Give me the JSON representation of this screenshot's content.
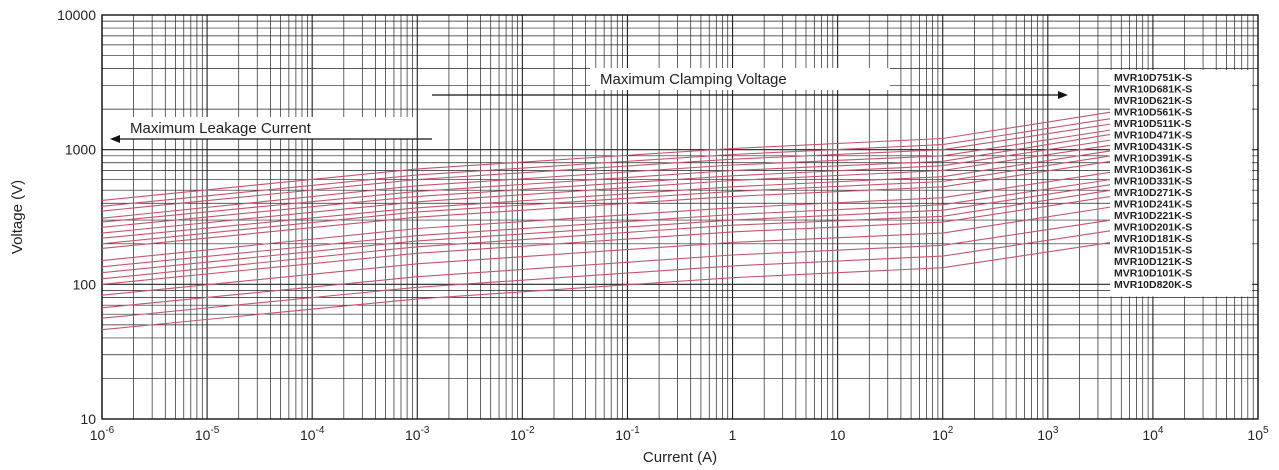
{
  "chart_data": {
    "type": "line",
    "title": "",
    "xlabel": "Current (A)",
    "ylabel": "Voltage (V)",
    "x_scale": "log",
    "y_scale": "log",
    "xlim": [
      1e-06,
      100000.0
    ],
    "ylim": [
      10,
      10000
    ],
    "grid": true,
    "x_tick_labels": [
      {
        "base": "10",
        "exp": "-6"
      },
      {
        "base": "10",
        "exp": "-5"
      },
      {
        "base": "10",
        "exp": "-4"
      },
      {
        "base": "10",
        "exp": "-3"
      },
      {
        "base": "10",
        "exp": "-2"
      },
      {
        "base": "10",
        "exp": "-1"
      },
      {
        "base": "1",
        "exp": ""
      },
      {
        "base": "10",
        "exp": ""
      },
      {
        "base": "10",
        "exp": "2"
      },
      {
        "base": "10",
        "exp": "3"
      },
      {
        "base": "10",
        "exp": "4"
      },
      {
        "base": "10",
        "exp": "5"
      }
    ],
    "y_tick_labels": [
      "10",
      "100",
      "1000",
      "10000"
    ],
    "annotations": {
      "leakage": "Maximum Leakage Current",
      "clamping": "Maximum Clamping Voltage"
    },
    "legend_placement": "right",
    "line_color": "#c8546a",
    "x_points": [
      1e-06,
      0.001,
      1,
      100,
      4000
    ],
    "series": [
      {
        "name": "MVR10D751K-S",
        "values": [
          420,
          720,
          1020,
          1210,
          1900
        ]
      },
      {
        "name": "MVR10D681K-S",
        "values": [
          380,
          650,
          920,
          1090,
          1700
        ]
      },
      {
        "name": "MVR10D621K-S",
        "values": [
          350,
          600,
          850,
          1000,
          1550
        ]
      },
      {
        "name": "MVR10D561K-S",
        "values": [
          310,
          540,
          770,
          900,
          1400
        ]
      },
      {
        "name": "MVR10D511K-S",
        "values": [
          290,
          490,
          700,
          820,
          1300
        ]
      },
      {
        "name": "MVR10D471K-S",
        "values": [
          265,
          450,
          640,
          760,
          1180
        ]
      },
      {
        "name": "MVR10D431K-S",
        "values": [
          240,
          410,
          590,
          700,
          1080
        ]
      },
      {
        "name": "MVR10D391K-S",
        "values": [
          220,
          370,
          530,
          630,
          980
        ]
      },
      {
        "name": "MVR10D361K-S",
        "values": [
          200,
          345,
          490,
          580,
          900
        ]
      },
      {
        "name": "MVR10D331K-S",
        "values": [
          185,
          315,
          450,
          530,
          820
        ]
      },
      {
        "name": "MVR10D271K-S",
        "values": [
          150,
          260,
          370,
          440,
          680
        ]
      },
      {
        "name": "MVR10D241K-S",
        "values": [
          135,
          230,
          330,
          390,
          600
        ]
      },
      {
        "name": "MVR10D221K-S",
        "values": [
          122,
          210,
          300,
          355,
          550
        ]
      },
      {
        "name": "MVR10D201K-S",
        "values": [
          110,
          190,
          275,
          320,
          500
        ]
      },
      {
        "name": "MVR10D181K-S",
        "values": [
          100,
          170,
          245,
          290,
          450
        ]
      },
      {
        "name": "MVR10D151K-S",
        "values": [
          83,
          142,
          205,
          240,
          375
        ]
      },
      {
        "name": "MVR10D121K-S",
        "values": [
          67,
          114,
          165,
          195,
          300
        ]
      },
      {
        "name": "MVR10D101K-S",
        "values": [
          56,
          95,
          137,
          162,
          250
        ]
      },
      {
        "name": "MVR10D820K-S",
        "values": [
          46,
          78,
          112,
          133,
          205
        ]
      }
    ]
  }
}
